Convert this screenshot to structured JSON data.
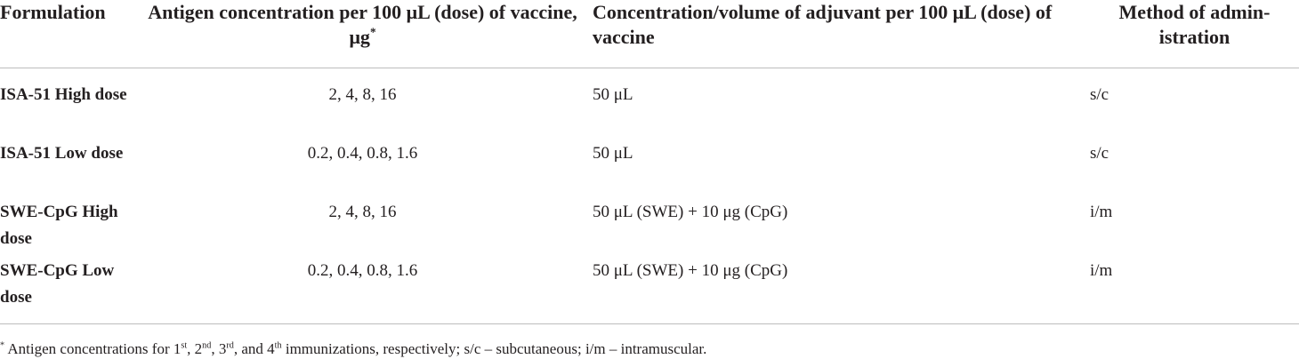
{
  "table": {
    "columns": [
      "Formulation",
      "Antigen concentration per 100 μL (dose) of vaccine, μg",
      "Concentration/volume of adjuvant per 100 μL (dose) of vaccine",
      "Method of admin-istration"
    ],
    "rows": [
      [
        "ISA-51 High dose",
        "2, 4, 8, 16",
        "50 μL",
        "s/c"
      ],
      [
        "ISA-51 Low dose",
        "0.2, 0.4, 0.8, 1.6",
        "50 μL",
        "s/c"
      ],
      [
        "SWE-CpG High dose",
        "2, 4, 8, 16",
        "50 μL (SWE) + 10 μg (CpG)",
        "i/m"
      ],
      [
        "SWE-CpG Low dose",
        "0.2, 0.4, 0.8, 1.6",
        "50 μL (SWE) + 10 μg (CpG)",
        "i/m"
      ]
    ]
  },
  "footnote": {
    "marker": "*",
    "parts": [
      "Antigen concentrations for 1",
      "st",
      ", 2",
      "nd",
      ", 3",
      "rd",
      ", and 4",
      "th",
      " immunizations, respectively; s/c – subcutaneous; i/m – intramuscular."
    ]
  }
}
